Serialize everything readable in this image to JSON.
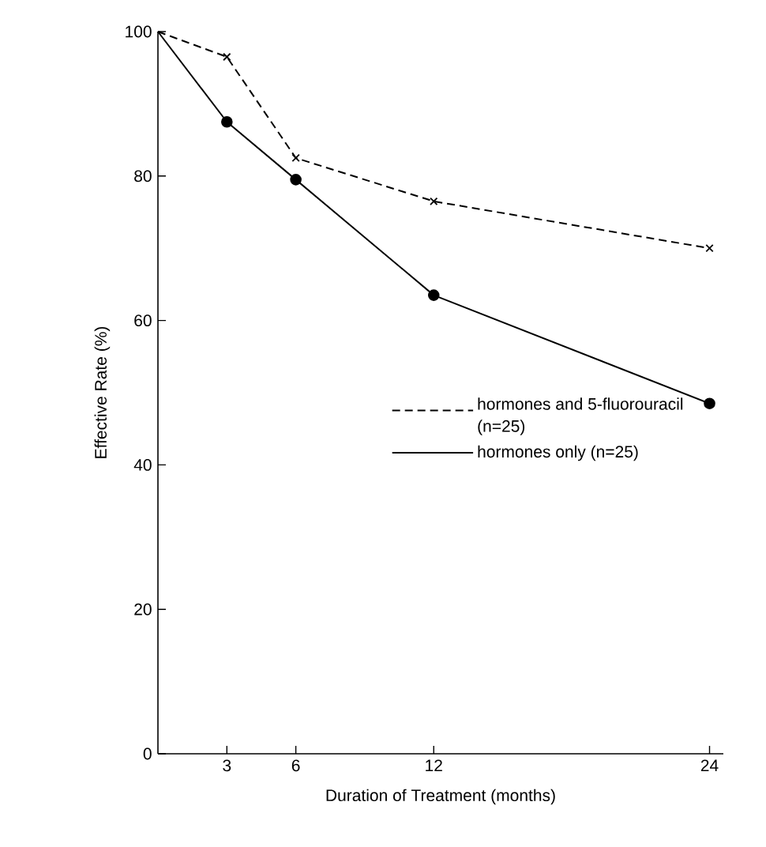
{
  "chart_data": {
    "type": "line",
    "xlabel": "Duration of Treatment (months)",
    "ylabel": "Effective Rate   (%)",
    "xlim": [
      0,
      24.6
    ],
    "ylim": [
      0,
      100
    ],
    "xticks": [
      3,
      6,
      12,
      24
    ],
    "yticks": [
      0,
      20,
      40,
      60,
      80,
      100
    ],
    "grid": false,
    "legend": "right",
    "series": [
      {
        "name": "hormones and 5-fluorouracil (n=25)",
        "color": "#000000",
        "line_style": "dashed",
        "marker": "cross",
        "x": [
          0,
          3,
          6,
          12,
          24
        ],
        "values": [
          100,
          96.5,
          82.5,
          76.5,
          70
        ]
      },
      {
        "name": "hormones only (n=25)",
        "color": "#000000",
        "line_style": "solid",
        "marker": "circle",
        "x": [
          0,
          3,
          6,
          12,
          24
        ],
        "values": [
          100,
          87.5,
          79.5,
          63.5,
          48.5
        ]
      }
    ]
  }
}
